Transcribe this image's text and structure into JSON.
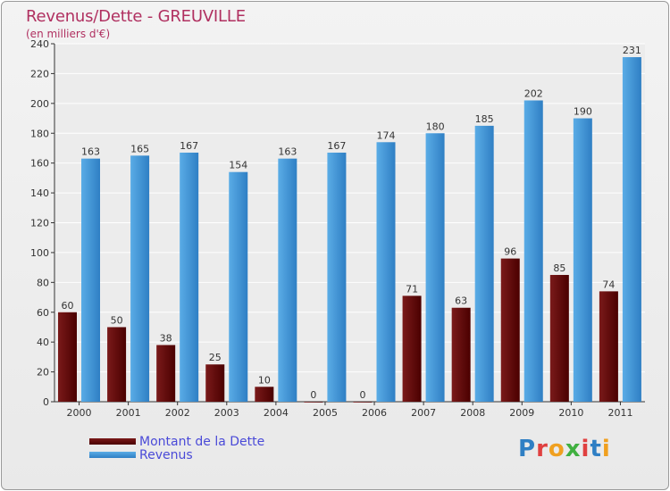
{
  "header": {
    "title": "Revenus/Dette - GREUVILLE",
    "subtitle": "(en milliers d'€)"
  },
  "legend": {
    "debt_label": "Montant de la Dette",
    "revenue_label": "Revenus"
  },
  "logo": {
    "text": "Proxiti"
  },
  "colors": {
    "debt": "#7a1a1a",
    "debt_dark": "#4a0000",
    "revenue": "#5aace6",
    "revenue_dark": "#2f7fc4",
    "logo": [
      "#2f7fc4",
      "#e04040",
      "#f0a020",
      "#40b040",
      "#e04040",
      "#2f7fc4",
      "#f0a020"
    ]
  },
  "chart_data": {
    "type": "bar",
    "title": "Revenus/Dette - GREUVILLE",
    "ylabel": "(en milliers d'€)",
    "xlabel": "",
    "ylim": [
      0,
      240
    ],
    "yticks": [
      0,
      20,
      40,
      60,
      80,
      100,
      120,
      140,
      160,
      180,
      200,
      220,
      240
    ],
    "grid": true,
    "legend_position": "bottom-left",
    "categories": [
      "2000",
      "2001",
      "2002",
      "2003",
      "2004",
      "2005",
      "2006",
      "2007",
      "2008",
      "2009",
      "2010",
      "2011"
    ],
    "series": [
      {
        "name": "Montant de la Dette",
        "values": [
          60,
          50,
          38,
          25,
          10,
          0,
          0,
          71,
          63,
          96,
          85,
          74
        ]
      },
      {
        "name": "Revenus",
        "values": [
          163,
          165,
          167,
          154,
          163,
          167,
          174,
          180,
          185,
          202,
          190,
          231
        ]
      }
    ]
  }
}
